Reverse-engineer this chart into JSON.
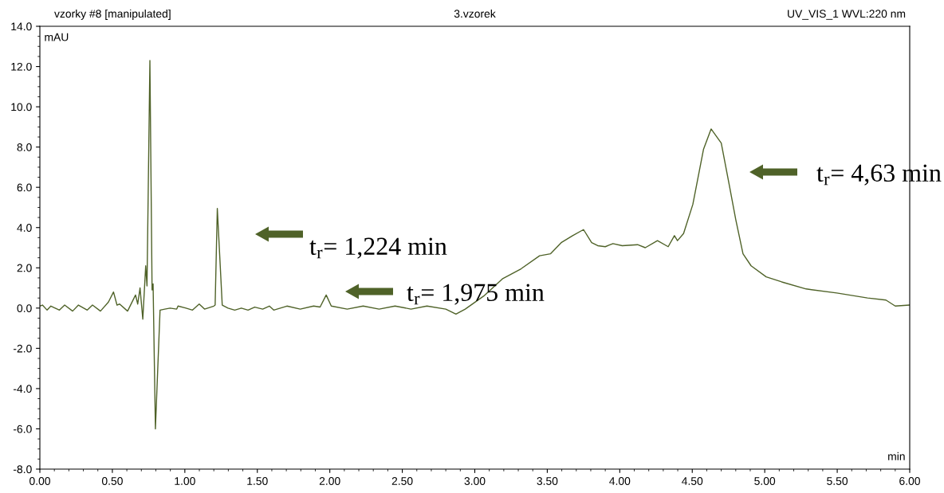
{
  "chart_data": {
    "type": "line",
    "title": "3.vzorek",
    "xlabel": "min",
    "ylabel": "mAU",
    "annotations": [
      "vzorky #8 [manipulated]",
      "UV_VIS_1 WVL:220 nm",
      "t$_{r}$= 1,224 min",
      "t$_{r}$= 1,975 min",
      "t$_{r}$= 4,63 min"
    ],
    "series": [
      {
        "color": "#4f6228",
        "x": [
          0.0,
          0.018,
          0.05,
          0.076,
          0.135,
          0.171,
          0.226,
          0.266,
          0.327,
          0.363,
          0.418,
          0.473,
          0.508,
          0.532,
          0.55,
          0.605,
          0.66,
          0.675,
          0.691,
          0.71,
          0.73,
          0.739,
          0.759,
          0.774,
          0.781,
          0.797,
          0.829,
          0.862,
          0.898,
          0.944,
          0.953,
          1.008,
          1.053,
          1.099,
          1.136,
          1.2,
          1.209,
          1.224,
          1.258,
          1.298,
          1.344,
          1.39,
          1.436,
          1.482,
          1.537,
          1.583,
          1.613,
          1.704,
          1.796,
          1.888,
          1.933,
          1.975,
          2.01,
          2.12,
          2.23,
          2.34,
          2.45,
          2.56,
          2.67,
          2.8,
          2.87,
          2.934,
          3.062,
          3.19,
          3.319,
          3.447,
          3.523,
          3.596,
          3.675,
          3.75,
          3.806,
          3.848,
          3.9,
          3.953,
          4.017,
          4.123,
          4.176,
          4.26,
          4.334,
          4.377,
          4.398,
          4.44,
          4.504,
          4.578,
          4.63,
          4.7,
          4.757,
          4.8,
          4.85,
          4.906,
          5.01,
          5.117,
          5.286,
          5.497,
          5.709,
          5.836,
          5.9,
          6.0
        ],
        "values": [
          0.1,
          0.15,
          -0.1,
          0.1,
          -0.1,
          0.15,
          -0.15,
          0.15,
          -0.1,
          0.15,
          -0.15,
          0.3,
          0.8,
          0.15,
          0.2,
          -0.15,
          0.65,
          0.2,
          1.0,
          -0.55,
          2.1,
          1.1,
          12.3,
          0.9,
          1.2,
          -6.0,
          -0.1,
          -0.05,
          0.0,
          -0.05,
          0.1,
          0.0,
          -0.1,
          0.2,
          -0.05,
          0.1,
          0.15,
          4.95,
          0.15,
          0.0,
          -0.1,
          0.0,
          -0.1,
          0.05,
          -0.05,
          0.1,
          -0.1,
          0.1,
          -0.05,
          0.1,
          0.05,
          0.65,
          0.1,
          -0.05,
          0.1,
          -0.05,
          0.1,
          -0.05,
          0.1,
          -0.05,
          -0.3,
          -0.05,
          0.6,
          1.45,
          1.95,
          2.6,
          2.7,
          3.25,
          3.6,
          3.9,
          3.25,
          3.1,
          3.05,
          3.2,
          3.1,
          3.15,
          3.0,
          3.35,
          3.05,
          3.6,
          3.35,
          3.7,
          5.15,
          7.9,
          8.9,
          8.2,
          6.05,
          4.4,
          2.7,
          2.1,
          1.55,
          1.3,
          0.95,
          0.75,
          0.5,
          0.4,
          0.1,
          0.15
        ]
      }
    ],
    "xlim": [
      0,
      6
    ],
    "xticks": [
      {
        "value": 0,
        "label": "0.00"
      },
      {
        "value": 0.5,
        "label": "0.50"
      },
      {
        "value": 1,
        "label": "1.00"
      },
      {
        "value": 1.5,
        "label": "1.50"
      },
      {
        "value": 2,
        "label": "2.00"
      },
      {
        "value": 2.5,
        "label": "2.50"
      },
      {
        "value": 3,
        "label": "3.00"
      },
      {
        "value": 3.5,
        "label": "3.50"
      },
      {
        "value": 4,
        "label": "4.00"
      },
      {
        "value": 4.5,
        "label": "4.50"
      },
      {
        "value": 5,
        "label": "5.00"
      },
      {
        "value": 5.5,
        "label": "5.50"
      },
      {
        "value": 6,
        "label": "6.00"
      }
    ],
    "ylim": [
      -8,
      14
    ],
    "yticks": [
      {
        "value": -8,
        "label": "-8.0"
      },
      {
        "value": -6,
        "label": "-6.0"
      },
      {
        "value": -4,
        "label": "-4.0"
      },
      {
        "value": -2,
        "label": "-2.0"
      },
      {
        "value": 0,
        "label": "0.0"
      },
      {
        "value": 2,
        "label": "2.0"
      },
      {
        "value": 4,
        "label": "4.0"
      },
      {
        "value": 6,
        "label": "6.0"
      },
      {
        "value": 8,
        "label": "8.0"
      },
      {
        "value": 10,
        "label": "10.0"
      },
      {
        "value": 12,
        "label": "12.0"
      },
      {
        "value": 14,
        "label": "14.0"
      }
    ],
    "grid": false,
    "legend": false,
    "marker": "none",
    "line_style": "solid"
  }
}
